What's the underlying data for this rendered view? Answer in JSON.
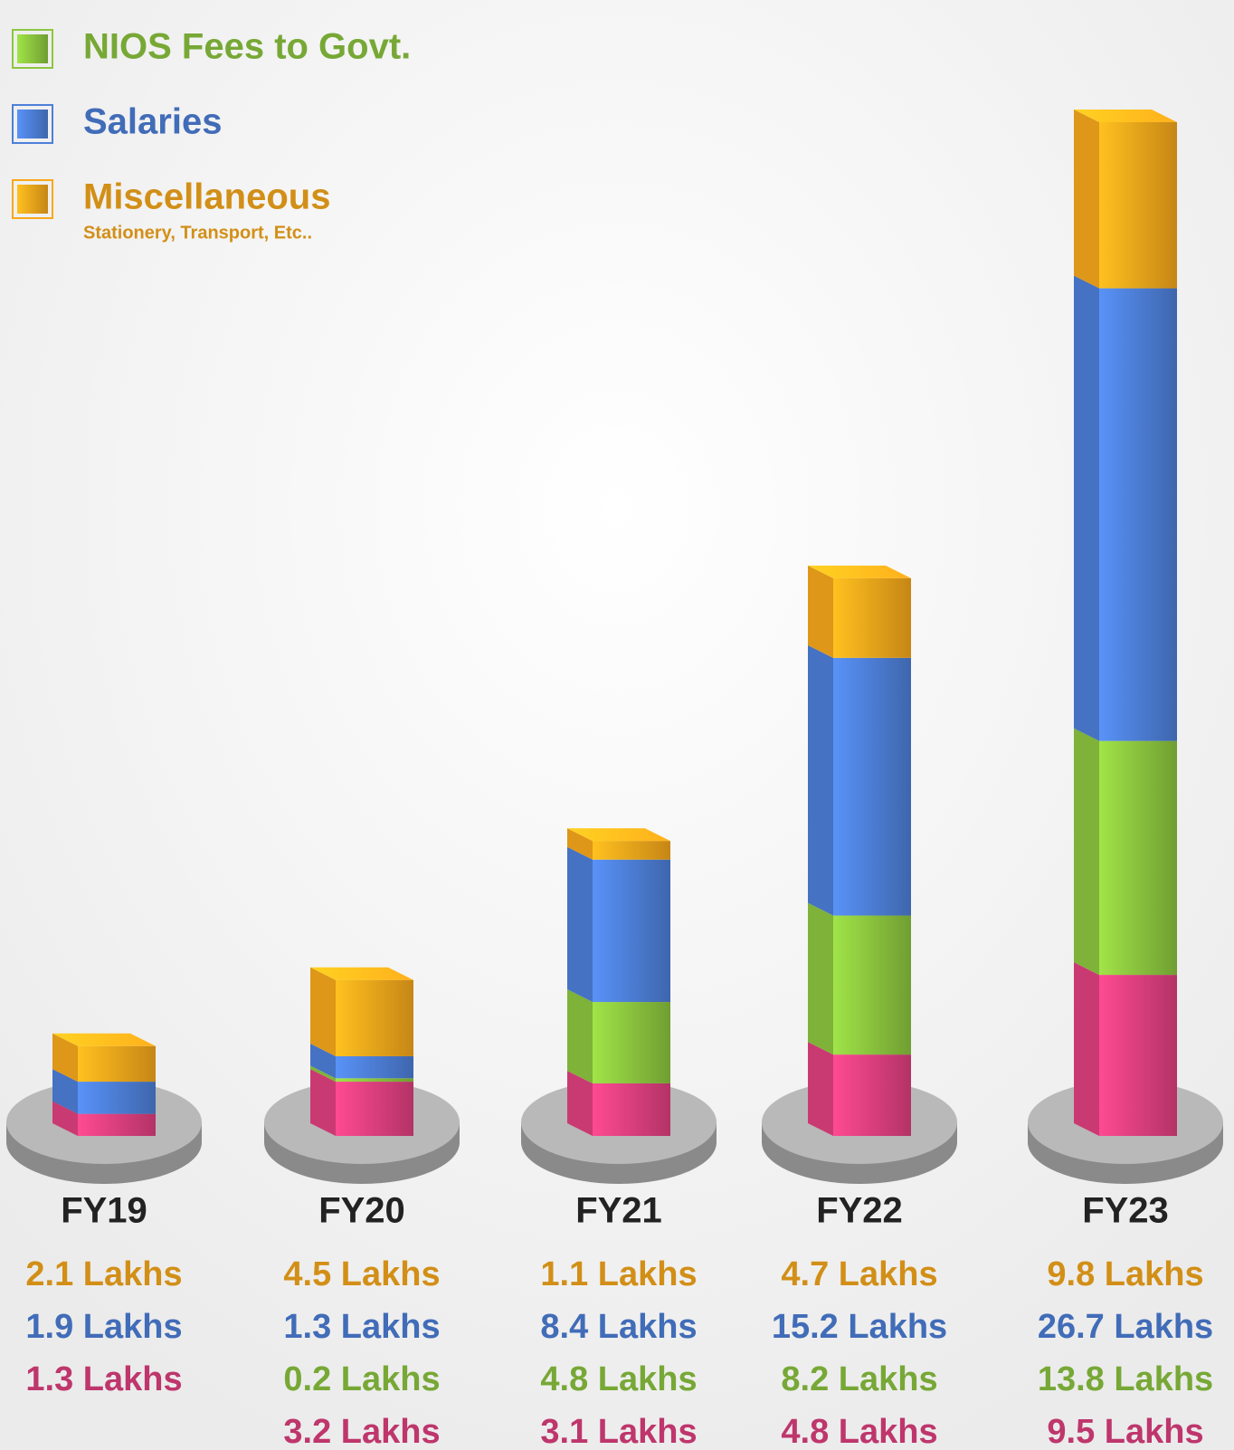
{
  "chart_data": {
    "type": "bar",
    "stacked": true,
    "categories": [
      "FY19",
      "FY20",
      "FY21",
      "FY22",
      "FY23"
    ],
    "series": [
      {
        "color": "#e0407f",
        "values": [
          1.3,
          3.2,
          3.1,
          4.8,
          9.5
        ],
        "value_labels": [
          "1.3 Lakhs",
          "3.2 Lakhs",
          "3.1 Lakhs",
          "4.8 Lakhs",
          "9.5 Lakhs"
        ]
      },
      {
        "name": "NIOS Fees to Govt.",
        "color": "#8cc63f",
        "values": [
          null,
          0.2,
          4.8,
          8.2,
          13.8
        ],
        "value_labels": [
          null,
          "0.2 Lakhs",
          "4.8 Lakhs",
          "8.2 Lakhs",
          "13.8 Lakhs"
        ]
      },
      {
        "name": "Salaries",
        "color": "#4d7fd8",
        "values": [
          1.9,
          1.3,
          8.4,
          15.2,
          26.7
        ],
        "value_labels": [
          "1.9 Lakhs",
          "1.3 Lakhs",
          "8.4 Lakhs",
          "15.2 Lakhs",
          "26.7 Lakhs"
        ]
      },
      {
        "name": "Miscellaneous",
        "description": "Stationery, Transport, Etc..",
        "color": "#f7a81b",
        "values": [
          2.1,
          4.5,
          1.1,
          4.7,
          9.8
        ],
        "value_labels": [
          "2.1 Lakhs",
          "4.5 Lakhs",
          "1.1 Lakhs",
          "4.7 Lakhs",
          "9.8 Lakhs"
        ]
      }
    ]
  }
}
